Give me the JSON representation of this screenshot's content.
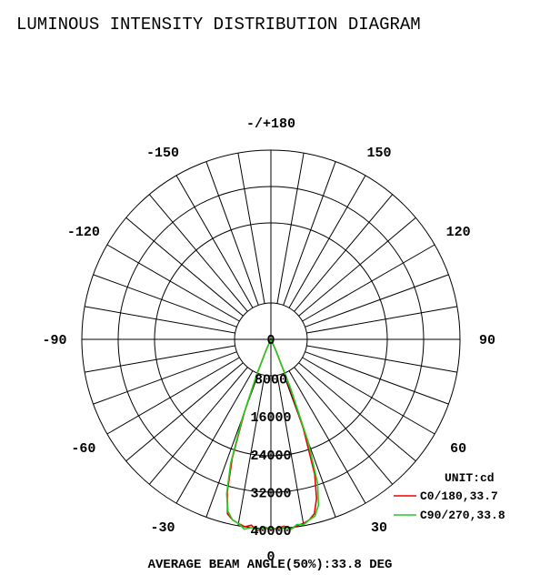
{
  "chart_data": {
    "type": "polar",
    "title": "LUMINOUS INTENSITY DISTRIBUTION DIAGRAM",
    "unit_label": "UNIT:cd",
    "footer": "AVERAGE BEAM ANGLE(50%):33.8 DEG",
    "r_max": 40000,
    "radial_ticks": [
      0,
      8000,
      16000,
      24000,
      32000,
      40000
    ],
    "radial_tick_labels": [
      "0",
      "8000",
      "16000",
      "24000",
      "32000",
      "40000"
    ],
    "angle_labels": [
      {
        "angle": 180,
        "text": "-/+180"
      },
      {
        "angle": 150,
        "text": "150"
      },
      {
        "angle": 120,
        "text": "120"
      },
      {
        "angle": 90,
        "text": "90"
      },
      {
        "angle": 60,
        "text": "60"
      },
      {
        "angle": 30,
        "text": "30"
      },
      {
        "angle": 0,
        "text": "0"
      },
      {
        "angle": -30,
        "text": "-30"
      },
      {
        "angle": -60,
        "text": "-60"
      },
      {
        "angle": -90,
        "text": "-90"
      },
      {
        "angle": -120,
        "text": "-120"
      },
      {
        "angle": -150,
        "text": "-150"
      }
    ],
    "spoke_step_deg": 10,
    "grid": true,
    "legend_position": "bottom-right",
    "series": [
      {
        "name": "C0/180,33.7",
        "color": "#ee0000",
        "angles": [
          -24,
          -22,
          -20,
          -18,
          -16,
          -14,
          -12,
          -10,
          -8,
          -6,
          -4,
          -2,
          0,
          2,
          4,
          6,
          8,
          10,
          12,
          14,
          16,
          18,
          20,
          22,
          24
        ],
        "values": [
          2500,
          7500,
          16500,
          26500,
          33500,
          38000,
          39000,
          39500,
          40000,
          39500,
          40500,
          39800,
          40200,
          40000,
          39600,
          40300,
          39800,
          39500,
          39000,
          38000,
          35000,
          30000,
          20000,
          9000,
          2500
        ]
      },
      {
        "name": "C90/270,33.8",
        "color": "#22cc22",
        "angles": [
          -24,
          -22,
          -20,
          -18,
          -16,
          -14,
          -12,
          -10,
          -8,
          -6,
          -4,
          -2,
          0,
          2,
          4,
          6,
          8,
          10,
          12,
          14,
          16,
          18,
          20,
          22,
          24
        ],
        "values": [
          2500,
          8000,
          17500,
          27500,
          34000,
          37500,
          39000,
          39500,
          40500,
          40000,
          40300,
          39700,
          40000,
          40200,
          39800,
          40400,
          39500,
          39800,
          39000,
          38500,
          36500,
          32000,
          23000,
          11000,
          3000
        ]
      }
    ]
  }
}
